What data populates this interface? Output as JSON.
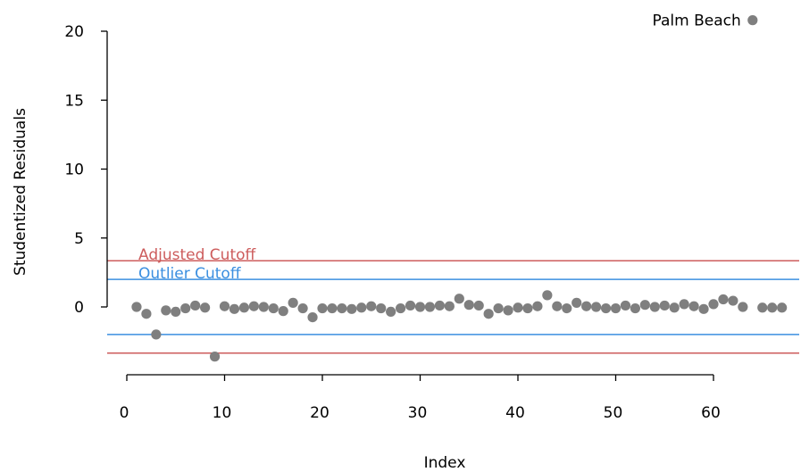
{
  "chart_data": {
    "type": "scatter",
    "title": "",
    "xlabel": "Index",
    "ylabel": "Studentized Residuals",
    "xlim": [
      0,
      70
    ],
    "ylim": [
      -4,
      20
    ],
    "x_axis_range": [
      0,
      60
    ],
    "y_axis_range": [
      0,
      20
    ],
    "x_ticks": [
      0,
      10,
      20,
      30,
      40,
      50,
      60
    ],
    "y_ticks": [
      0,
      5,
      10,
      15,
      20
    ],
    "grid": false,
    "colors": {
      "points": "#7f7f7f",
      "adjusted_cutoff": "#cd5c5c",
      "outlier_cutoff": "#3b8fe0",
      "axis": "#000000"
    },
    "reference_lines": [
      {
        "name": "Adjusted Cutoff",
        "values": [
          3.35,
          -3.35
        ],
        "color": "#cd5c5c"
      },
      {
        "name": "Outlier Cutoff",
        "values": [
          2.0,
          -2.0
        ],
        "color": "#3b8fe0"
      }
    ],
    "points": [
      {
        "x": 1,
        "y": 0.0
      },
      {
        "x": 2,
        "y": -0.5
      },
      {
        "x": 3,
        "y": -2.0
      },
      {
        "x": 4,
        "y": -0.25
      },
      {
        "x": 5,
        "y": -0.35
      },
      {
        "x": 6,
        "y": -0.1
      },
      {
        "x": 7,
        "y": 0.1
      },
      {
        "x": 8,
        "y": -0.05
      },
      {
        "x": 9,
        "y": -3.6
      },
      {
        "x": 10,
        "y": 0.05
      },
      {
        "x": 11,
        "y": -0.15
      },
      {
        "x": 12,
        "y": -0.05
      },
      {
        "x": 13,
        "y": 0.05
      },
      {
        "x": 14,
        "y": 0.0
      },
      {
        "x": 15,
        "y": -0.1
      },
      {
        "x": 16,
        "y": -0.3
      },
      {
        "x": 17,
        "y": 0.3
      },
      {
        "x": 18,
        "y": -0.1
      },
      {
        "x": 19,
        "y": -0.75
      },
      {
        "x": 20,
        "y": -0.1
      },
      {
        "x": 21,
        "y": -0.1
      },
      {
        "x": 22,
        "y": -0.1
      },
      {
        "x": 23,
        "y": -0.15
      },
      {
        "x": 24,
        "y": -0.05
      },
      {
        "x": 25,
        "y": 0.05
      },
      {
        "x": 26,
        "y": -0.1
      },
      {
        "x": 27,
        "y": -0.35
      },
      {
        "x": 28,
        "y": -0.1
      },
      {
        "x": 29,
        "y": 0.1
      },
      {
        "x": 30,
        "y": 0.0
      },
      {
        "x": 31,
        "y": 0.0
      },
      {
        "x": 32,
        "y": 0.1
      },
      {
        "x": 33,
        "y": 0.05
      },
      {
        "x": 34,
        "y": 0.6
      },
      {
        "x": 35,
        "y": 0.15
      },
      {
        "x": 36,
        "y": 0.1
      },
      {
        "x": 37,
        "y": -0.5
      },
      {
        "x": 38,
        "y": -0.1
      },
      {
        "x": 39,
        "y": -0.25
      },
      {
        "x": 40,
        "y": -0.05
      },
      {
        "x": 41,
        "y": -0.1
      },
      {
        "x": 42,
        "y": 0.05
      },
      {
        "x": 43,
        "y": 0.85
      },
      {
        "x": 44,
        "y": 0.05
      },
      {
        "x": 45,
        "y": -0.1
      },
      {
        "x": 46,
        "y": 0.3
      },
      {
        "x": 47,
        "y": 0.05
      },
      {
        "x": 48,
        "y": 0.0
      },
      {
        "x": 49,
        "y": -0.1
      },
      {
        "x": 50,
        "y": -0.1
      },
      {
        "x": 51,
        "y": 0.1
      },
      {
        "x": 52,
        "y": -0.1
      },
      {
        "x": 53,
        "y": 0.15
      },
      {
        "x": 54,
        "y": 0.0
      },
      {
        "x": 55,
        "y": 0.1
      },
      {
        "x": 56,
        "y": -0.05
      },
      {
        "x": 57,
        "y": 0.2
      },
      {
        "x": 58,
        "y": 0.05
      },
      {
        "x": 59,
        "y": -0.15
      },
      {
        "x": 60,
        "y": 0.2
      },
      {
        "x": 61,
        "y": 0.55
      },
      {
        "x": 62,
        "y": 0.45
      },
      {
        "x": 63,
        "y": 0.0
      },
      {
        "x": 64,
        "y": 20.8
      },
      {
        "x": 65,
        "y": -0.05
      },
      {
        "x": 66,
        "y": -0.05
      },
      {
        "x": 67,
        "y": -0.05
      }
    ],
    "annotations": [
      {
        "text": "Palm Beach",
        "x": 64,
        "y": 20.8
      }
    ]
  }
}
